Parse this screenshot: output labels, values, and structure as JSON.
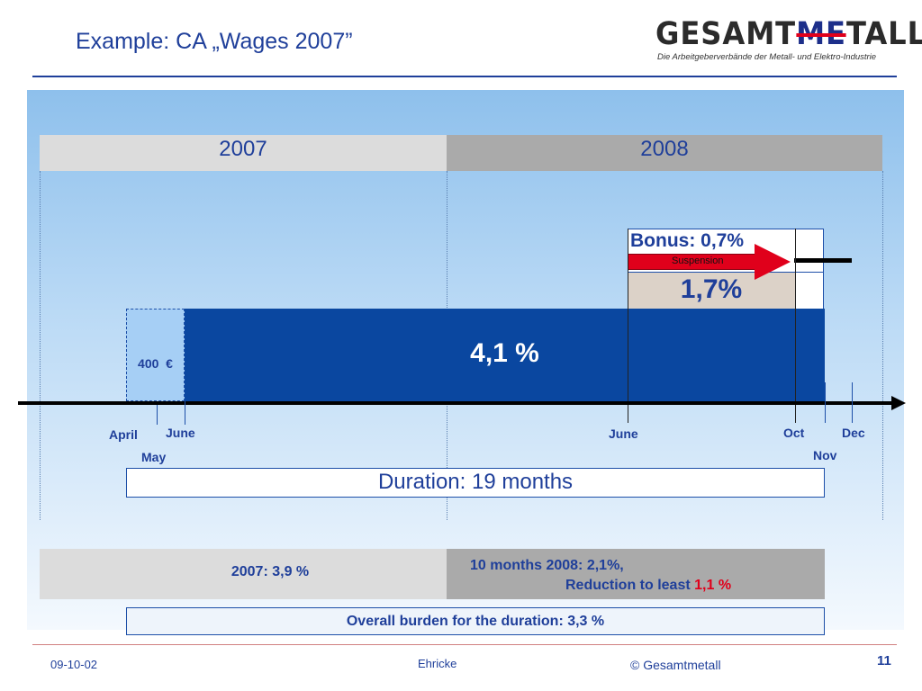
{
  "slide": {
    "title": "Example: CA „Wages 2007”",
    "logo_main_pre": "GESAMT",
    "logo_main_me": "ME",
    "logo_main_post": "TALL",
    "logo_sub": "Die Arbeitgeberverbände der Metall- und Elektro-Industrie"
  },
  "years": {
    "y2007": "2007",
    "y2008": "2008"
  },
  "chart": {
    "bonus": "Bonus: 0,7%",
    "suspension": "Suspension",
    "increase_2008": "1,7%",
    "increase_main": "4,1 %",
    "one_off": "400  €",
    "duration": "Duration: 19 months"
  },
  "months": {
    "april": "April",
    "may": "May",
    "june_2007": "June",
    "june_2008": "June",
    "oct": "Oct",
    "nov": "Nov",
    "dec": "Dec"
  },
  "summary": {
    "y2007": "2007: 3,9 %",
    "ten_months": "10 months 2008: 2,1%,",
    "reduction": "Reduction to least",
    "reduction_value": "1,1 %",
    "overall": "Overall burden for the duration: 3,3 %"
  },
  "footer": {
    "date": "09-10-02",
    "author": "Ehricke",
    "copyright": "© Gesamtmetall",
    "page": "11"
  },
  "colors": {
    "accent_blue": "#1f3f9a",
    "bar_blue": "#0a47a0",
    "red": "#e0001b"
  }
}
